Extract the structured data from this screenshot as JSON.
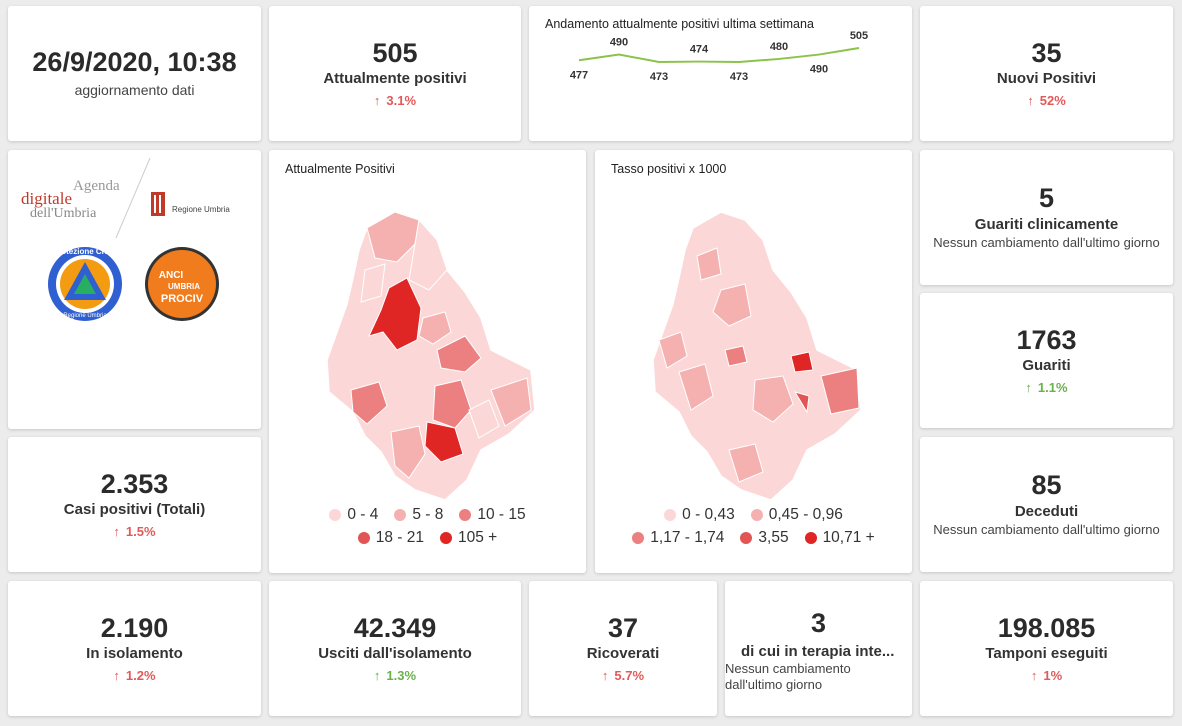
{
  "datetime": {
    "value": "26/9/2020, 10:38",
    "label": "aggiornamento dati"
  },
  "attualmente_positivi": {
    "value": "505",
    "label": "Attualmente positivi",
    "delta": "3.1%"
  },
  "trend": {
    "title": "Andamento attualmente positivi ultima settimana",
    "values": [
      477,
      490,
      473,
      474,
      473,
      480,
      490,
      505
    ],
    "labels": [
      "477",
      "490",
      "473",
      "474",
      "473",
      "480",
      "490",
      "505"
    ],
    "line_color": "#8bc34a"
  },
  "nuovi_positivi": {
    "value": "35",
    "label": "Nuovi Positivi",
    "delta": "52%"
  },
  "logos": {
    "agenda": {
      "line1": "Agenda",
      "line2": "digitale",
      "line3": "dell'Umbria"
    },
    "regione": "Regione Umbria",
    "protezione": {
      "top": "Protezione Civile",
      "bottom": "Regione Umbria"
    },
    "anci": {
      "line1": "ANCI",
      "line2": "UMBRIA",
      "line3": "PROCIV"
    }
  },
  "map_positivi": {
    "title": "Attualmente Positivi",
    "legend": [
      {
        "label": "0 - 4",
        "color": "#fcd7d7"
      },
      {
        "label": "5 - 8",
        "color": "#f5b0b0"
      },
      {
        "label": "10 - 15",
        "color": "#ec8080"
      },
      {
        "label": "18 - 21",
        "color": "#e25555"
      },
      {
        "label": "105 +",
        "color": "#e02525"
      }
    ]
  },
  "map_tasso": {
    "title": "Tasso positivi x 1000",
    "legend": [
      {
        "label": "0 - 0,43",
        "color": "#fcd7d7"
      },
      {
        "label": "0,45 - 0,96",
        "color": "#f5b0b0"
      },
      {
        "label": "1,17 - 1,74",
        "color": "#ec8080"
      },
      {
        "label": "3,55",
        "color": "#e25555"
      },
      {
        "label": "10,71 +",
        "color": "#e02525"
      }
    ]
  },
  "guariti_clinicamente": {
    "value": "5",
    "label": "Guariti clinicamente",
    "note": "Nessun cambiamento dall'ultimo giorno"
  },
  "guariti": {
    "value": "1763",
    "label": "Guariti",
    "delta": "1.1%"
  },
  "casi_totali": {
    "value": "2.353",
    "label": "Casi positivi (Totali)",
    "delta": "1.5%"
  },
  "deceduti": {
    "value": "85",
    "label": "Deceduti",
    "note": "Nessun cambiamento dall'ultimo giorno"
  },
  "isolamento": {
    "value": "2.190",
    "label": "In isolamento",
    "delta": "1.2%"
  },
  "usciti": {
    "value": "42.349",
    "label": "Usciti dall'isolamento",
    "delta": "1.3%"
  },
  "ricoverati": {
    "value": "37",
    "label": "Ricoverati",
    "delta": "5.7%"
  },
  "terapia": {
    "value": "3",
    "label": "di cui in terapia inte...",
    "note": "Nessun cambiamento dall'ultimo giorno"
  },
  "tamponi": {
    "value": "198.085",
    "label": "Tamponi eseguiti",
    "delta": "1%"
  },
  "colors": {
    "up_red": "#e05a5a",
    "up_green": "#6ab04c",
    "accent_red": "#e02525"
  }
}
